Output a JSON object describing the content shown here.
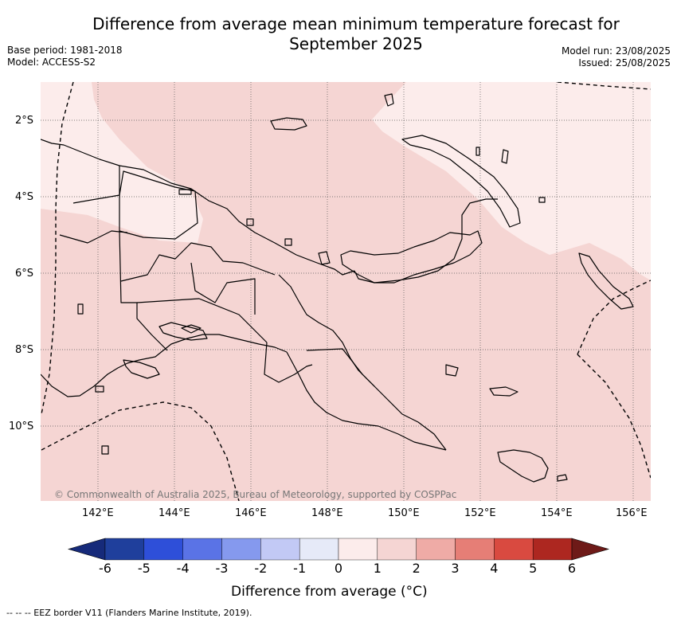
{
  "title": {
    "line1": "Difference from average mean minimum temperature forecast for",
    "line2": "September 2025"
  },
  "meta": {
    "base_period": "Base period: 1981-2018",
    "model": "Model: ACCESS-S2",
    "model_run": "Model run: 23/08/2025",
    "issued": "Issued: 25/08/2025"
  },
  "map": {
    "region": "Papua New Guinea",
    "lat_labels": [
      "2°S",
      "4°S",
      "6°S",
      "8°S",
      "10°S"
    ],
    "lon_labels": [
      "142°E",
      "144°E",
      "146°E",
      "148°E",
      "150°E",
      "152°E",
      "154°E",
      "156°E"
    ],
    "copyright": "© Commonwealth of Australia 2025, Bureau of Meteorology, supported by COSPPac"
  },
  "colorbar": {
    "title": "Difference from average (°C)",
    "ticks": [
      "-6",
      "-5",
      "-4",
      "-3",
      "-2",
      "-1",
      "0",
      "1",
      "2",
      "3",
      "4",
      "5",
      "6"
    ],
    "colors": [
      "#1f3f9c",
      "#2e4fd9",
      "#5a73e6",
      "#8599ee",
      "#c2c9f5",
      "#e6eaf8",
      "#fceceb",
      "#f5d5d3",
      "#efaba6",
      "#e67e76",
      "#d94a40",
      "#ad2720"
    ],
    "under_color": "#162a7a",
    "over_color": "#6e1a18"
  },
  "footer": "--  --  -- EEZ border V11 (Flanders Marine Institute, 2019).",
  "colors": {
    "anomaly_0_1": "#fceceb",
    "anomaly_1_2": "#f5d5d3"
  }
}
